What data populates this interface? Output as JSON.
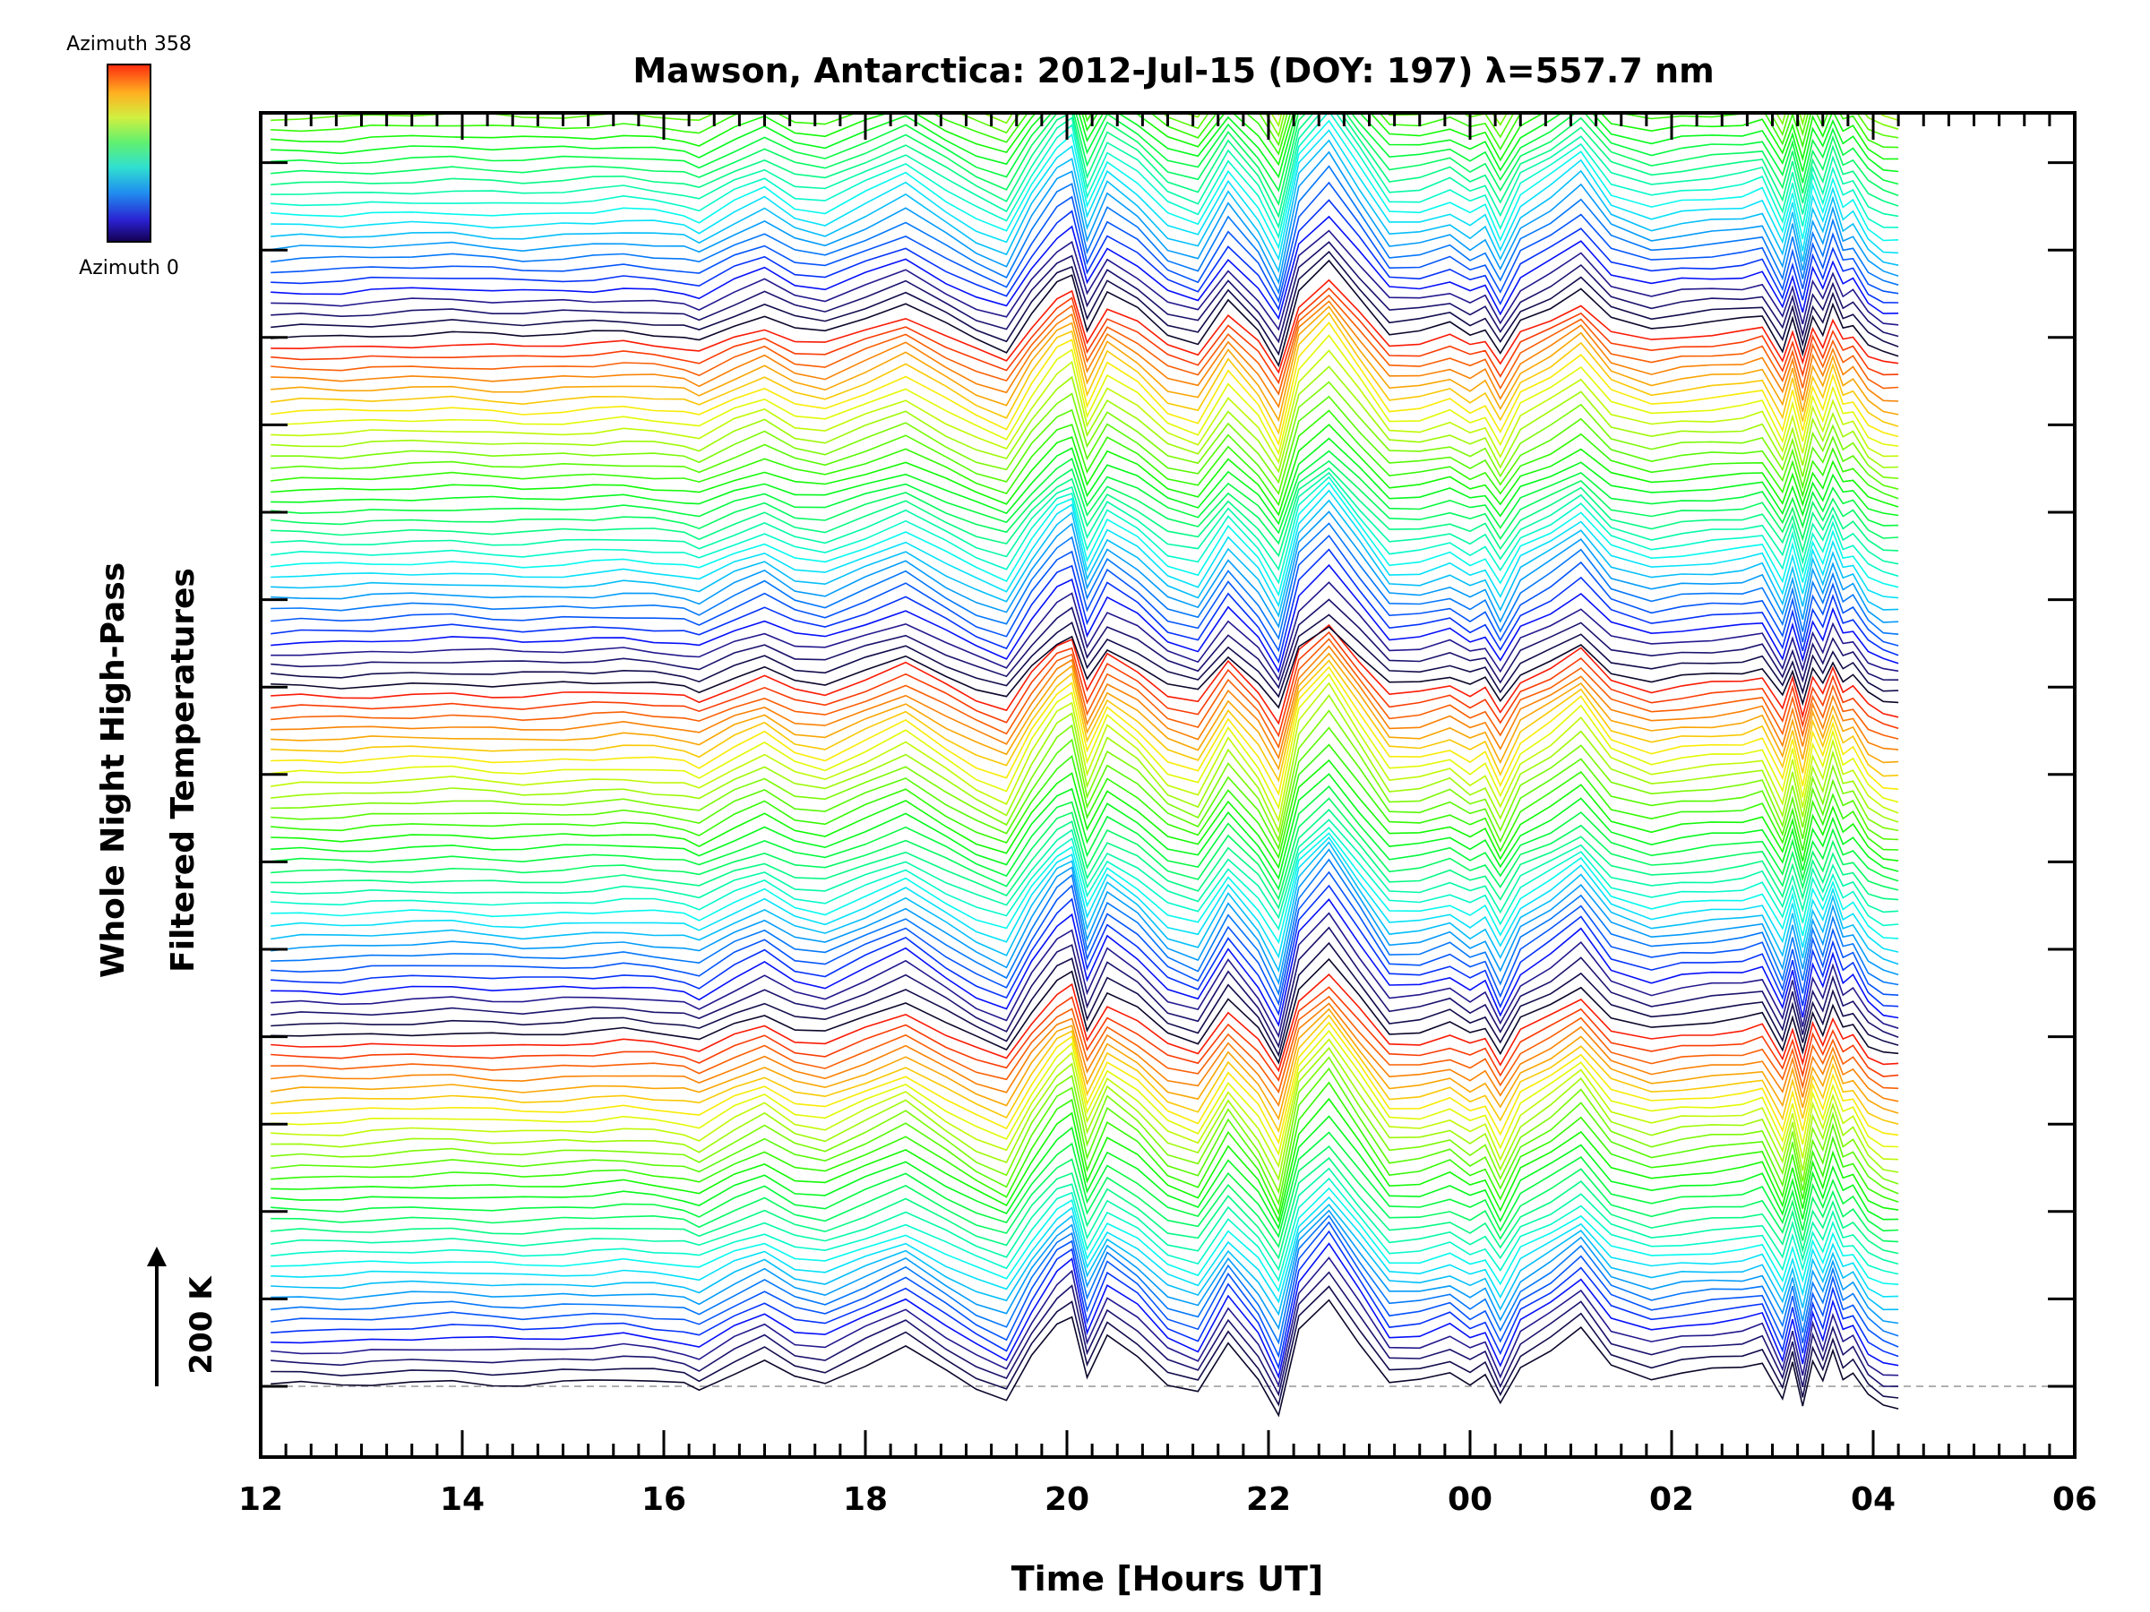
{
  "chart_data": {
    "type": "line",
    "title": "Mawson, Antarctica: 2012-Jul-15 (DOY: 197) λ=557.7 nm",
    "xlabel": "Time [Hours UT]",
    "ylabel_line1": "Whole Night High-Pass",
    "ylabel_line2": "Filtered Temperatures",
    "scale_label": "200 K",
    "x_tick_labels": [
      "12",
      "14",
      "16",
      "18",
      "20",
      "22",
      "00",
      "02",
      "04",
      "06"
    ],
    "x_ticks_hours": [
      12,
      14,
      16,
      18,
      20,
      22,
      24,
      26,
      28,
      30
    ],
    "xlim_hours": [
      12,
      30
    ],
    "colorbar": {
      "top_label": "Azimuth 358",
      "bottom_label": "Azimuth 0",
      "min": 0,
      "max": 358,
      "colormap": "rainbow (blue-black to red)"
    },
    "trace_count": 128,
    "trace_cycle_length": 32,
    "trace_spacing_K": 200,
    "baseline_dashed": true,
    "grid": false,
    "series_profile": {
      "description": "High-pass filtered temperature traces per azimuth, stacked with constant offset",
      "time_hours": [
        12.1,
        12.4,
        12.8,
        13.1,
        13.5,
        13.9,
        14.3,
        14.6,
        15.0,
        15.3,
        15.6,
        15.9,
        16.2,
        16.35,
        16.7,
        17.0,
        17.3,
        17.6,
        18.0,
        18.4,
        18.8,
        19.1,
        19.4,
        19.65,
        19.9,
        20.05,
        20.2,
        20.4,
        20.7,
        21.0,
        21.3,
        21.6,
        21.9,
        22.1,
        22.3,
        22.6,
        22.9,
        23.2,
        23.5,
        23.8,
        24.0,
        24.15,
        24.3,
        24.5,
        24.8,
        25.1,
        25.4,
        25.8,
        26.1,
        26.4,
        26.7,
        26.9,
        27.1,
        27.2,
        27.3,
        27.4,
        27.5,
        27.6,
        27.7,
        27.8,
        27.95,
        28.1,
        28.25
      ],
      "relative_temperature_K": [
        5,
        8,
        6,
        12,
        18,
        22,
        12,
        8,
        15,
        20,
        28,
        18,
        5,
        -15,
        60,
        110,
        40,
        20,
        90,
        160,
        60,
        -10,
        -60,
        120,
        260,
        300,
        40,
        210,
        130,
        10,
        -30,
        170,
        30,
        -120,
        230,
        360,
        190,
        20,
        25,
        60,
        10,
        40,
        -80,
        80,
        150,
        240,
        90,
        40,
        60,
        70,
        80,
        100,
        -60,
        90,
        -80,
        110,
        20,
        150,
        40,
        60,
        -40,
        -80,
        -90
      ]
    }
  }
}
